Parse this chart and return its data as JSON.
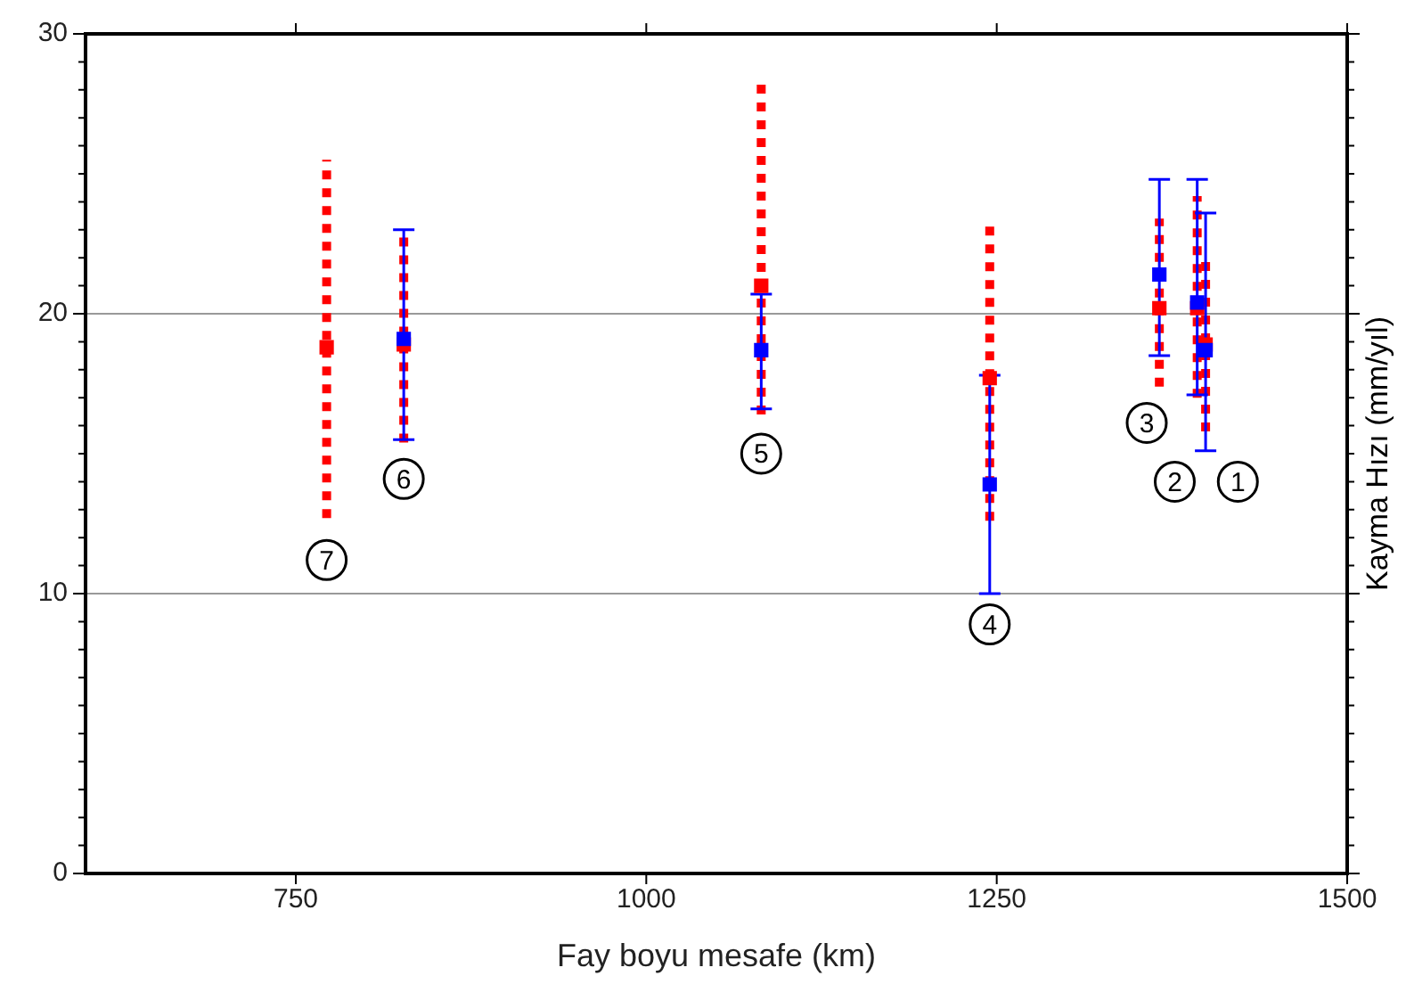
{
  "chart_data": {
    "type": "scatter",
    "xlabel": "Fay boyu mesafe (km)",
    "ylabel": "Kayma Hızı (mm/yıl)",
    "xlim": [
      600,
      1500
    ],
    "xticks": [
      750,
      1000,
      1250,
      1500
    ],
    "ylim": [
      0,
      30
    ],
    "yticks": [
      0,
      {
        "value": 1,
        "label": null
      },
      {
        "value": 2,
        "label": null
      },
      {
        "value": 3,
        "label": null
      },
      {
        "value": 4,
        "label": null
      },
      {
        "value": 5,
        "label": null
      },
      {
        "value": 6,
        "label": null
      },
      {
        "value": 7,
        "label": null
      },
      {
        "value": 8,
        "label": null
      },
      {
        "value": 9,
        "label": null
      },
      10,
      {
        "value": 11,
        "label": null
      },
      {
        "value": 12,
        "label": null
      },
      {
        "value": 13,
        "label": null
      },
      {
        "value": 14,
        "label": null
      },
      {
        "value": 15,
        "label": null
      },
      {
        "value": 16,
        "label": null
      },
      {
        "value": 17,
        "label": null
      },
      {
        "value": 18,
        "label": null
      },
      {
        "value": 19,
        "label": null
      },
      20,
      {
        "value": 21,
        "label": null
      },
      {
        "value": 22,
        "label": null
      },
      {
        "value": 23,
        "label": null
      },
      {
        "value": 24,
        "label": null
      },
      {
        "value": 25,
        "label": null
      },
      {
        "value": 26,
        "label": null
      },
      {
        "value": 27,
        "label": null
      },
      {
        "value": 28,
        "label": null
      },
      {
        "value": 29,
        "label": null
      },
      30
    ],
    "grid": "y",
    "marker": "square",
    "series": [
      {
        "color": "#ff0000",
        "line_style": "dotted",
        "x": [
          772,
          827,
          1082,
          1245,
          1366,
          1393,
          1399
        ],
        "values": [
          18.8,
          18.9,
          21.0,
          17.7,
          20.2,
          20.2,
          18.9
        ],
        "errors": [
          [
            12.7,
            25.5
          ],
          [
            15.4,
            23.0
          ],
          [
            16.4,
            28.2
          ],
          [
            12.6,
            23.2
          ],
          [
            17.4,
            23.4
          ],
          [
            17.0,
            24.2
          ],
          [
            15.8,
            21.9
          ]
        ]
      },
      {
        "color": "#0000ff",
        "line_style": "solid",
        "x": [
          827,
          1082,
          1245,
          1366,
          1393,
          1399
        ],
        "values": [
          19.1,
          18.7,
          13.9,
          21.4,
          20.4,
          18.7
        ],
        "errors": [
          [
            15.5,
            23.0
          ],
          [
            16.6,
            20.7
          ],
          [
            10.0,
            17.8
          ],
          [
            18.5,
            24.8
          ],
          [
            17.1,
            24.8
          ],
          [
            15.1,
            23.6
          ]
        ]
      }
    ],
    "annotations": [
      {
        "text": "1",
        "x": 1422,
        "y": 14.0
      },
      {
        "text": "2",
        "x": 1377,
        "y": 14.0
      },
      {
        "text": "3",
        "x": 1357,
        "y": 16.1
      },
      {
        "text": "4",
        "x": 1245,
        "y": 8.9
      },
      {
        "text": "5",
        "x": 1082,
        "y": 15.0
      },
      {
        "text": "6",
        "x": 827,
        "y": 14.1
      },
      {
        "text": "7",
        "x": 772,
        "y": 11.2
      }
    ]
  }
}
